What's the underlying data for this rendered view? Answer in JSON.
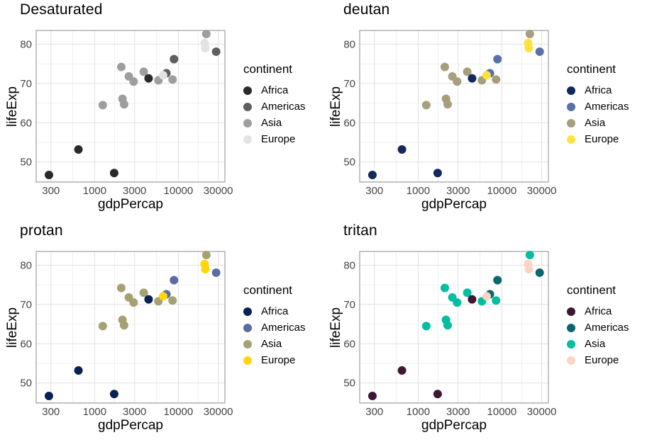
{
  "chart_data": {
    "type": "scatter",
    "xlabel": "gdpPercap",
    "ylabel": "lifeExp",
    "legend_title": "continent",
    "legend_position": "right",
    "x_scale": "log10",
    "x_domain": [
      200,
      36000
    ],
    "y_domain": [
      44.9,
      83.5
    ],
    "x_ticks": [
      300,
      1000,
      3000,
      10000,
      30000
    ],
    "x_tick_labels": [
      "300",
      "1000",
      "3000",
      "10000",
      "30000"
    ],
    "x_minor": [
      547,
      1732,
      5477,
      17320
    ],
    "y_ticks": [
      50,
      60,
      70,
      80
    ],
    "y_tick_labels": [
      "50",
      "60",
      "70",
      "80"
    ],
    "y_minor": [
      45,
      55,
      65,
      75
    ],
    "grid": "on",
    "groups": [
      "Africa",
      "Americas",
      "Asia",
      "Europe"
    ],
    "style": {
      "grid_major": "#e3e3e3",
      "grid_minor": "#f0f0f0",
      "panel_border": "#9f9f9f",
      "tick_text": "#454545",
      "background": "#ffffff"
    },
    "panels": [
      {
        "title": "Desaturated",
        "colors": {
          "Africa": "#2a2a2a",
          "Americas": "#5f5f5f",
          "Asia": "#9e9e9e",
          "Europe": "#e3e3e3"
        }
      },
      {
        "title": "deutan",
        "colors": {
          "Africa": "#13295d",
          "Americas": "#5b6fa8",
          "Asia": "#a79e7e",
          "Europe": "#ffe23d"
        }
      },
      {
        "title": "protan",
        "colors": {
          "Africa": "#0a2156",
          "Americas": "#5d6ba2",
          "Asia": "#a6a072",
          "Europe": "#ffd60d"
        }
      },
      {
        "title": "tritan",
        "colors": {
          "Africa": "#3f1733",
          "Americas": "#09686e",
          "Asia": "#00bfa1",
          "Europe": "#fbd4c3"
        }
      }
    ],
    "points": [
      {
        "continent": "Asia",
        "gdpPercap": 1250,
        "lifeExp": 64.5
      },
      {
        "continent": "Asia",
        "gdpPercap": 2080,
        "lifeExp": 74.2
      },
      {
        "continent": "Asia",
        "gdpPercap": 2150,
        "lifeExp": 66.1
      },
      {
        "continent": "Asia",
        "gdpPercap": 2250,
        "lifeExp": 64.7
      },
      {
        "continent": "Asia",
        "gdpPercap": 2560,
        "lifeExp": 71.8
      },
      {
        "continent": "Asia",
        "gdpPercap": 2920,
        "lifeExp": 70.5
      },
      {
        "continent": "Asia",
        "gdpPercap": 3860,
        "lifeExp": 73.0
      },
      {
        "continent": "Asia",
        "gdpPercap": 5780,
        "lifeExp": 70.8
      },
      {
        "continent": "Asia",
        "gdpPercap": 8530,
        "lifeExp": 71.0
      },
      {
        "continent": "Asia",
        "gdpPercap": 21600,
        "lifeExp": 82.6
      },
      {
        "continent": "Americas",
        "gdpPercap": 7200,
        "lifeExp": 72.6
      },
      {
        "continent": "Americas",
        "gdpPercap": 8870,
        "lifeExp": 76.2
      },
      {
        "continent": "Americas",
        "gdpPercap": 28300,
        "lifeExp": 78.1
      },
      {
        "continent": "Europe",
        "gdpPercap": 6580,
        "lifeExp": 72.1
      },
      {
        "continent": "Europe",
        "gdpPercap": 20600,
        "lifeExp": 80.3
      },
      {
        "continent": "Europe",
        "gdpPercap": 21000,
        "lifeExp": 79.0
      },
      {
        "continent": "Africa",
        "gdpPercap": 284,
        "lifeExp": 46.7
      },
      {
        "continent": "Africa",
        "gdpPercap": 640,
        "lifeExp": 53.2
      },
      {
        "continent": "Africa",
        "gdpPercap": 1710,
        "lifeExp": 47.2
      },
      {
        "continent": "Africa",
        "gdpPercap": 4410,
        "lifeExp": 71.3
      }
    ]
  }
}
